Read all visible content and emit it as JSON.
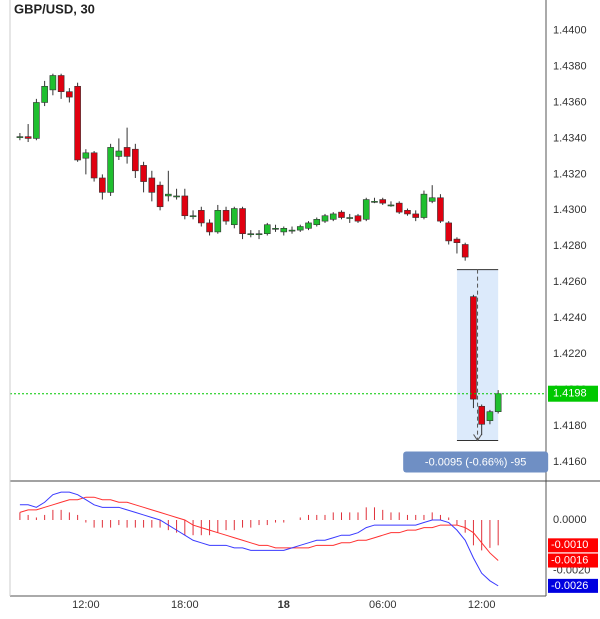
{
  "chart_data": [
    {
      "type": "candlestick",
      "title": "GBP/USD, 30",
      "x": [
        0,
        1,
        2,
        3,
        4,
        5,
        6,
        7,
        8,
        9,
        10,
        11,
        12,
        13,
        14,
        15,
        16,
        17,
        18,
        19,
        20,
        21,
        22,
        23,
        24,
        25,
        26,
        27,
        28,
        29,
        30,
        31,
        32,
        33,
        34,
        35,
        36,
        37,
        38,
        39,
        40,
        41,
        42,
        43,
        44,
        45,
        46,
        47,
        48,
        49,
        50,
        51,
        52,
        53,
        54,
        55,
        56,
        57,
        58
      ],
      "open": [
        1.4341,
        1.4341,
        1.434,
        1.436,
        1.4367,
        1.4375,
        1.4366,
        1.4369,
        1.4329,
        1.4332,
        1.4318,
        1.431,
        1.433,
        1.4335,
        1.4334,
        1.4325,
        1.4318,
        1.4314,
        1.4308,
        1.4308,
        1.4308,
        1.4297,
        1.43,
        1.4293,
        1.4288,
        1.43,
        1.4292,
        1.4301,
        1.4287,
        1.4287,
        1.4287,
        1.429,
        1.4288,
        1.4289,
        1.4289,
        1.429,
        1.4292,
        1.4294,
        1.4295,
        1.4299,
        1.4296,
        1.4297,
        1.4295,
        1.4305,
        1.4306,
        1.4303,
        1.4304,
        1.43,
        1.4298,
        1.4296,
        1.4305,
        1.4307,
        1.4293,
        1.4284,
        1.4281,
        1.4252,
        1.4191,
        1.4183,
        1.4188
      ],
      "high": [
        1.4343,
        1.4348,
        1.4362,
        1.4372,
        1.4376,
        1.4376,
        1.4368,
        1.4371,
        1.4334,
        1.4333,
        1.432,
        1.4337,
        1.434,
        1.4346,
        1.4337,
        1.4327,
        1.4322,
        1.4316,
        1.4322,
        1.4312,
        1.4312,
        1.43,
        1.4302,
        1.4295,
        1.4303,
        1.4302,
        1.4302,
        1.4302,
        1.4289,
        1.4289,
        1.4293,
        1.4292,
        1.4291,
        1.4291,
        1.4292,
        1.4294,
        1.4296,
        1.4298,
        1.4299,
        1.43,
        1.4298,
        1.4298,
        1.4307,
        1.4307,
        1.4307,
        1.4305,
        1.4305,
        1.4301,
        1.43,
        1.4311,
        1.4314,
        1.4309,
        1.4294,
        1.4285,
        1.4282,
        1.4253,
        1.4192,
        1.4189,
        1.42
      ],
      "low": [
        1.4339,
        1.4338,
        1.4339,
        1.4358,
        1.4364,
        1.4362,
        1.436,
        1.4327,
        1.432,
        1.4316,
        1.4306,
        1.4308,
        1.4328,
        1.4326,
        1.4318,
        1.431,
        1.4305,
        1.43,
        1.4305,
        1.4306,
        1.4295,
        1.4295,
        1.4291,
        1.4286,
        1.4287,
        1.4292,
        1.429,
        1.4284,
        1.4285,
        1.4284,
        1.4286,
        1.4288,
        1.4286,
        1.4287,
        1.4288,
        1.4289,
        1.4291,
        1.4293,
        1.4294,
        1.4295,
        1.4293,
        1.4293,
        1.4294,
        1.4304,
        1.4303,
        1.4302,
        1.4298,
        1.4297,
        1.4294,
        1.4295,
        1.4304,
        1.4293,
        1.4281,
        1.4276,
        1.4272,
        1.419,
        1.4175,
        1.4181,
        1.4187
      ],
      "close": [
        1.4341,
        1.434,
        1.436,
        1.4369,
        1.4375,
        1.4366,
        1.4363,
        1.4328,
        1.4332,
        1.4318,
        1.431,
        1.4335,
        1.4333,
        1.433,
        1.4322,
        1.4316,
        1.431,
        1.4302,
        1.4309,
        1.4308,
        1.4297,
        1.4297,
        1.4293,
        1.4288,
        1.43,
        1.4294,
        1.4301,
        1.4287,
        1.4287,
        1.4287,
        1.4292,
        1.429,
        1.429,
        1.4289,
        1.4291,
        1.4293,
        1.4295,
        1.4297,
        1.4298,
        1.4296,
        1.4296,
        1.4294,
        1.4306,
        1.4305,
        1.4304,
        1.4303,
        1.4299,
        1.4298,
        1.4296,
        1.4309,
        1.4307,
        1.4294,
        1.4283,
        1.4282,
        1.4274,
        1.4195,
        1.4181,
        1.4188,
        1.4198
      ],
      "up_color": "#1fbf2f",
      "down_color": "#e00010",
      "xlim": [
        -1.2,
        63.8
      ],
      "xticks": [
        {
          "value": 8,
          "label": "12:00"
        },
        {
          "value": 20,
          "label": "18:00"
        },
        {
          "value": 32,
          "label": "18",
          "bold": true
        },
        {
          "value": 44,
          "label": "06:00"
        },
        {
          "value": 56,
          "label": "12:00"
        }
      ],
      "ylim": [
        1.415,
        1.4417
      ],
      "yticks": [
        {
          "value": 1.416,
          "label": "1.4160"
        },
        {
          "value": 1.418,
          "label": "1.4180"
        },
        {
          "value": 1.42,
          "label": "1.4200"
        },
        {
          "value": 1.422,
          "label": "1.4220"
        },
        {
          "value": 1.424,
          "label": "1.4240"
        },
        {
          "value": 1.426,
          "label": "1.4260"
        },
        {
          "value": 1.428,
          "label": "1.4280"
        },
        {
          "value": 1.43,
          "label": "1.4300"
        },
        {
          "value": 1.432,
          "label": "1.4320"
        },
        {
          "value": 1.434,
          "label": "1.4340"
        },
        {
          "value": 1.436,
          "label": "1.4360"
        },
        {
          "value": 1.438,
          "label": "1.4380"
        },
        {
          "value": 1.44,
          "label": "1.4400"
        }
      ],
      "grid": true,
      "last_price": {
        "value": 1.4198,
        "label": "1.4198",
        "color": "#00c800"
      },
      "measure": {
        "x": [
          53,
          58
        ],
        "y": [
          1.4267,
          1.4172
        ],
        "label": "-0.0095 (-0.66%) -95"
      }
    },
    {
      "type": "line",
      "ylim": [
        -0.003,
        0.0015
      ],
      "yticks": [
        {
          "value": 0,
          "label": "0.0000"
        },
        {
          "value": -0.002,
          "label": "-0.0020"
        }
      ],
      "grid": true,
      "series": [
        {
          "type": "bar",
          "color": "#e0303a",
          "values": [
            0.0003,
            0.0002,
            0.0001,
            0.0002,
            0.0004,
            0.0004,
            0.0003,
            0.0002,
            -0.0001,
            -0.0003,
            -0.0003,
            -0.0003,
            -0.0002,
            -0.0003,
            -0.0003,
            -0.0003,
            -0.0003,
            -0.0003,
            -0.0004,
            -0.0005,
            -0.0006,
            -0.0006,
            -0.0006,
            -0.0006,
            -0.0005,
            -0.0004,
            -0.0004,
            -0.0003,
            -0.0003,
            -0.0002,
            -0.0002,
            -0.0001,
            -0.0001,
            0,
            0.0001,
            0.0002,
            0.0002,
            0.0002,
            0.0003,
            0.0003,
            0.0003,
            0.0003,
            0.0005,
            0.0005,
            0.0004,
            0.0003,
            0.0003,
            0.0002,
            0.0002,
            0.0002,
            0.0003,
            0.0002,
            0.0001,
            -0.0002,
            -0.0005,
            -0.001,
            -0.0012,
            -0.0011,
            -0.001
          ],
          "value_labels": [
            null,
            null,
            null,
            null,
            null,
            null,
            null,
            null,
            null,
            null,
            null,
            null,
            null,
            null,
            null,
            null,
            null,
            null,
            null,
            null,
            null,
            null,
            null,
            null,
            null,
            null,
            null,
            null,
            null,
            null,
            null,
            null,
            null,
            null,
            null,
            null,
            null,
            null,
            null,
            null,
            null,
            null,
            null,
            null,
            null,
            null,
            null,
            null,
            null,
            null,
            null,
            null,
            null,
            null,
            null,
            null,
            null,
            null,
            "-0.0010"
          ],
          "label_color": "#ff0000"
        },
        {
          "type": "line",
          "color": "#ff3030",
          "values": [
            0.0003,
            0.0004,
            0.0004,
            0.0005,
            0.0006,
            0.0007,
            0.0008,
            0.0008,
            0.0009,
            0.0009,
            0.0008,
            0.0008,
            0.0007,
            0.0007,
            0.0006,
            0.0005,
            0.0004,
            0.0003,
            0.0002,
            0.0001,
            0,
            -0.0002,
            -0.0003,
            -0.0004,
            -0.0005,
            -0.0006,
            -0.0007,
            -0.0008,
            -0.0009,
            -0.001,
            -0.001,
            -0.0011,
            -0.0011,
            -0.0011,
            -0.0011,
            -0.0011,
            -0.001,
            -0.001,
            -0.001,
            -0.0009,
            -0.0009,
            -0.0008,
            -0.0008,
            -0.0007,
            -0.0006,
            -0.0005,
            -0.0005,
            -0.0004,
            -0.0004,
            -0.0003,
            -0.0003,
            -0.0002,
            -0.0002,
            -0.0002,
            -0.0003,
            -0.0005,
            -0.0009,
            -0.0013,
            -0.0016
          ],
          "value_labels": [
            null,
            null,
            null,
            null,
            null,
            null,
            null,
            null,
            null,
            null,
            null,
            null,
            null,
            null,
            null,
            null,
            null,
            null,
            null,
            null,
            null,
            null,
            null,
            null,
            null,
            null,
            null,
            null,
            null,
            null,
            null,
            null,
            null,
            null,
            null,
            null,
            null,
            null,
            null,
            null,
            null,
            null,
            null,
            null,
            null,
            null,
            null,
            null,
            null,
            null,
            null,
            null,
            null,
            null,
            null,
            null,
            null,
            null,
            "-0.0016"
          ],
          "label_color": "#ff0000"
        },
        {
          "type": "line",
          "color": "#3a3aff",
          "values": [
            0.0006,
            0.0006,
            0.0005,
            0.0007,
            0.001,
            0.0011,
            0.0011,
            0.001,
            0.0008,
            0.0006,
            0.0005,
            0.0005,
            0.0005,
            0.0004,
            0.0003,
            0.0002,
            0.0001,
            0,
            -0.0002,
            -0.0004,
            -0.0006,
            -0.0008,
            -0.0009,
            -0.001,
            -0.001,
            -0.001,
            -0.0011,
            -0.0011,
            -0.0012,
            -0.0012,
            -0.0012,
            -0.0012,
            -0.0012,
            -0.0011,
            -0.001,
            -0.0009,
            -0.0008,
            -0.0008,
            -0.0007,
            -0.0006,
            -0.0006,
            -0.0005,
            -0.0003,
            -0.0002,
            -0.0002,
            -0.0002,
            -0.0002,
            -0.0002,
            -0.0002,
            -0.0001,
            0,
            0,
            -0.0001,
            -0.0004,
            -0.0008,
            -0.0015,
            -0.0021,
            -0.0024,
            -0.0026
          ],
          "value_labels": [
            null,
            null,
            null,
            null,
            null,
            null,
            null,
            null,
            null,
            null,
            null,
            null,
            null,
            null,
            null,
            null,
            null,
            null,
            null,
            null,
            null,
            null,
            null,
            null,
            null,
            null,
            null,
            null,
            null,
            null,
            null,
            null,
            null,
            null,
            null,
            null,
            null,
            null,
            null,
            null,
            null,
            null,
            null,
            null,
            null,
            null,
            null,
            null,
            null,
            null,
            null,
            null,
            null,
            null,
            null,
            null,
            null,
            null,
            "-0.0026"
          ],
          "label_color": "#0000e0"
        }
      ]
    }
  ]
}
